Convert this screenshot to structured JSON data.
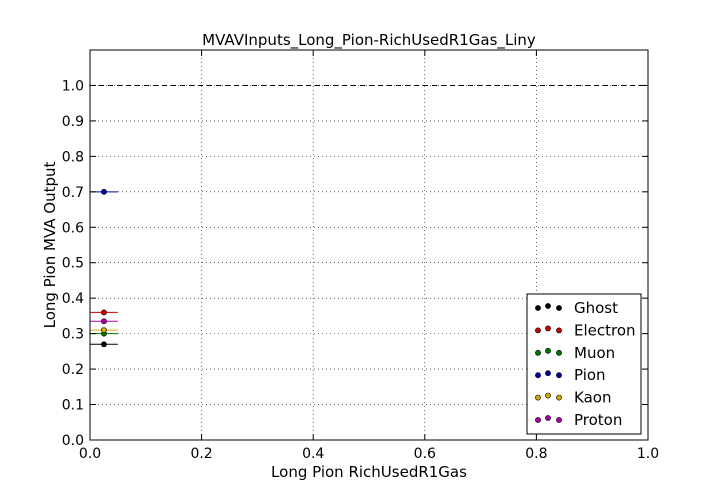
{
  "chart_data": {
    "type": "scatter",
    "title": "MVAVInputs_Long_Pion-RichUsedR1Gas_Liny",
    "xlabel": "Long Pion RichUsedR1Gas",
    "ylabel": "Long Pion MVA Output",
    "xlim": [
      0.0,
      1.0
    ],
    "ylim": [
      0.0,
      1.1
    ],
    "xticks": [
      0.0,
      0.2,
      0.4,
      0.6,
      0.8,
      1.0
    ],
    "xtick_labels": [
      "0.0",
      "0.2",
      "0.4",
      "0.6",
      "0.8",
      "1.0"
    ],
    "yticks": [
      0.0,
      0.1,
      0.2,
      0.3,
      0.4,
      0.5,
      0.6,
      0.7,
      0.8,
      0.9,
      1.0
    ],
    "ytick_labels": [
      "0.0",
      "0.1",
      "0.2",
      "0.3",
      "0.4",
      "0.5",
      "0.6",
      "0.7",
      "0.8",
      "0.9",
      "1.0"
    ],
    "grid": true,
    "reference_line_y": 1.0,
    "legend_position": "lower-right",
    "series": [
      {
        "name": "Ghost",
        "color": "#000000",
        "x": 0.025,
        "xerr": 0.025,
        "y": 0.27
      },
      {
        "name": "Electron",
        "color": "#cc0000",
        "x": 0.025,
        "xerr": 0.025,
        "y": 0.36
      },
      {
        "name": "Muon",
        "color": "#007700",
        "x": 0.025,
        "xerr": 0.025,
        "y": 0.3
      },
      {
        "name": "Pion",
        "color": "#0000aa",
        "x": 0.025,
        "xerr": 0.025,
        "y": 0.7
      },
      {
        "name": "Kaon",
        "color": "#ccaa00",
        "x": 0.025,
        "xerr": 0.025,
        "y": 0.31
      },
      {
        "name": "Proton",
        "color": "#aa00aa",
        "x": 0.025,
        "xerr": 0.025,
        "y": 0.335
      }
    ]
  }
}
